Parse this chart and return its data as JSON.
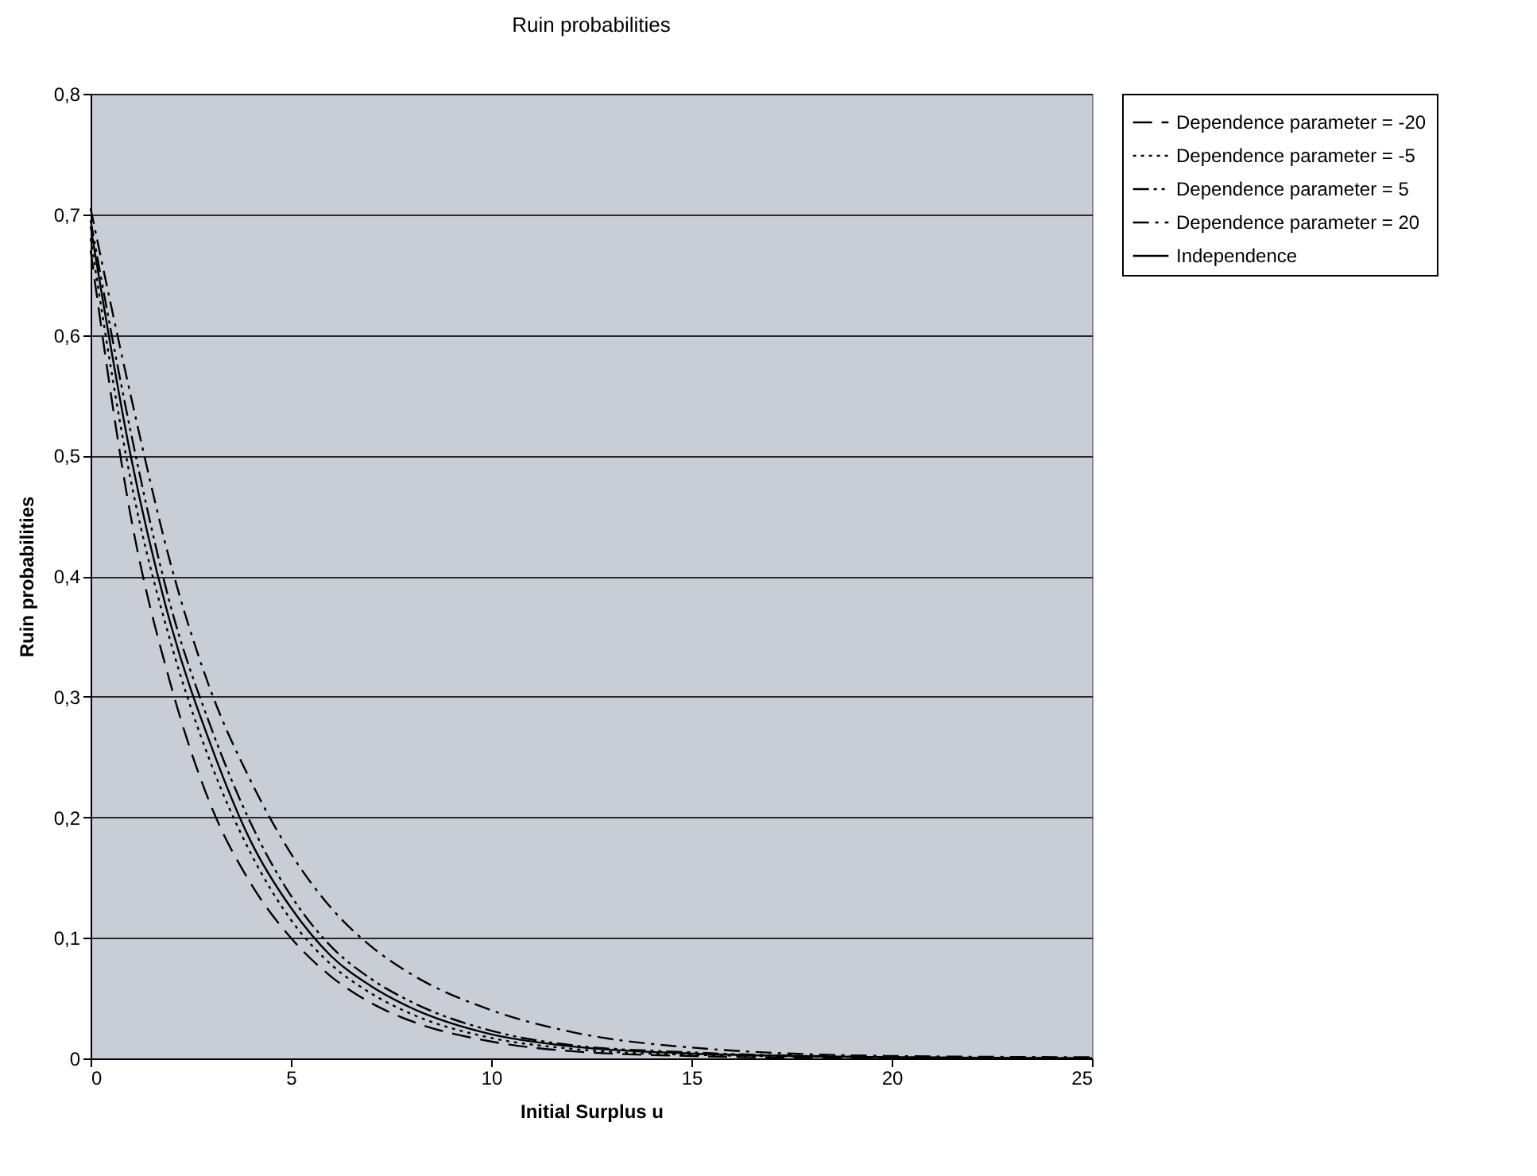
{
  "chart_data": {
    "type": "line",
    "title": "Ruin probabilities",
    "xlabel": "Initial Surplus u",
    "ylabel": "Ruin probabilities",
    "x": [
      0,
      1,
      2,
      3,
      4,
      5,
      6,
      7,
      8,
      10,
      12,
      15,
      20,
      25
    ],
    "series": [
      {
        "name": "Dependence parameter = -20",
        "color": "#000000",
        "line_style": "dashed",
        "values": [
          0.67,
          0.45,
          0.31,
          0.21,
          0.145,
          0.1,
          0.068,
          0.046,
          0.031,
          0.014,
          0.006,
          0.002,
          0,
          0
        ]
      },
      {
        "name": "Dependence parameter = -5",
        "color": "#000000",
        "line_style": "dotted",
        "values": [
          0.68,
          0.48,
          0.345,
          0.245,
          0.17,
          0.115,
          0.078,
          0.054,
          0.037,
          0.017,
          0.008,
          0.003,
          0.001,
          0
        ]
      },
      {
        "name": "Dependence parameter = 5",
        "color": "#000000",
        "line_style": "dashdotdot",
        "values": [
          0.695,
          0.52,
          0.375,
          0.275,
          0.195,
          0.135,
          0.093,
          0.066,
          0.047,
          0.023,
          0.011,
          0.005,
          0.001,
          0
        ]
      },
      {
        "name": "Dependence parameter = 20",
        "color": "#000000",
        "line_style": "dashdot",
        "values": [
          0.705,
          0.55,
          0.41,
          0.305,
          0.23,
          0.17,
          0.125,
          0.093,
          0.07,
          0.04,
          0.022,
          0.009,
          0.002,
          0.001
        ]
      },
      {
        "name": "Independence",
        "color": "#000000",
        "line_style": "solid",
        "values": [
          0.69,
          0.5,
          0.36,
          0.26,
          0.18,
          0.125,
          0.085,
          0.06,
          0.042,
          0.02,
          0.01,
          0.004,
          0.001,
          0
        ]
      }
    ],
    "xlim": [
      0,
      25
    ],
    "xticks": [
      0,
      5,
      10,
      15,
      20,
      25
    ],
    "ylim": [
      0,
      0.8
    ],
    "yticks": [
      {
        "value": 0,
        "label": "0"
      },
      {
        "value": 0.1,
        "label": "0,1"
      },
      {
        "value": 0.2,
        "label": "0,2"
      },
      {
        "value": 0.3,
        "label": "0,3"
      },
      {
        "value": 0.4,
        "label": "0,4"
      },
      {
        "value": 0.5,
        "label": "0,5"
      },
      {
        "value": 0.6,
        "label": "0,6"
      },
      {
        "value": 0.7,
        "label": "0,7"
      },
      {
        "value": 0.8,
        "label": "0,8"
      }
    ],
    "grid": "y",
    "legend": "right",
    "marker": "none"
  }
}
